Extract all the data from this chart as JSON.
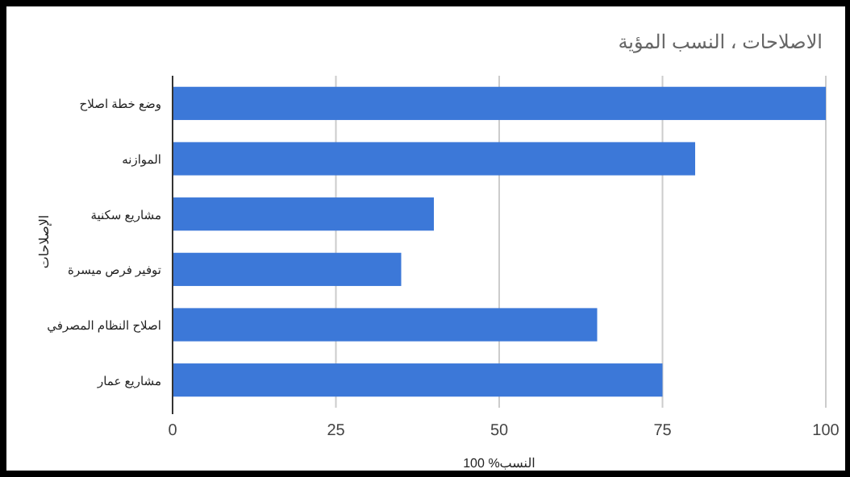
{
  "chart_data": {
    "type": "bar",
    "orientation": "horizontal",
    "title": "الاصلاحات ، النسب المؤية",
    "xlabel": "النسب% 100",
    "ylabel": "الإصلاحات",
    "categories": [
      "وضع خطة اصلاح",
      "الموازنه",
      "مشاريع سكنية",
      "توفير فرص ميسرة",
      "اصلاح النظام المصرفي",
      "مشاريع عمار"
    ],
    "values": [
      100,
      80,
      40,
      35,
      65,
      75
    ],
    "color": "#3c78d8",
    "xlim": [
      0,
      100
    ],
    "xticks": [
      0,
      25,
      50,
      75,
      100
    ],
    "grid": "x"
  }
}
